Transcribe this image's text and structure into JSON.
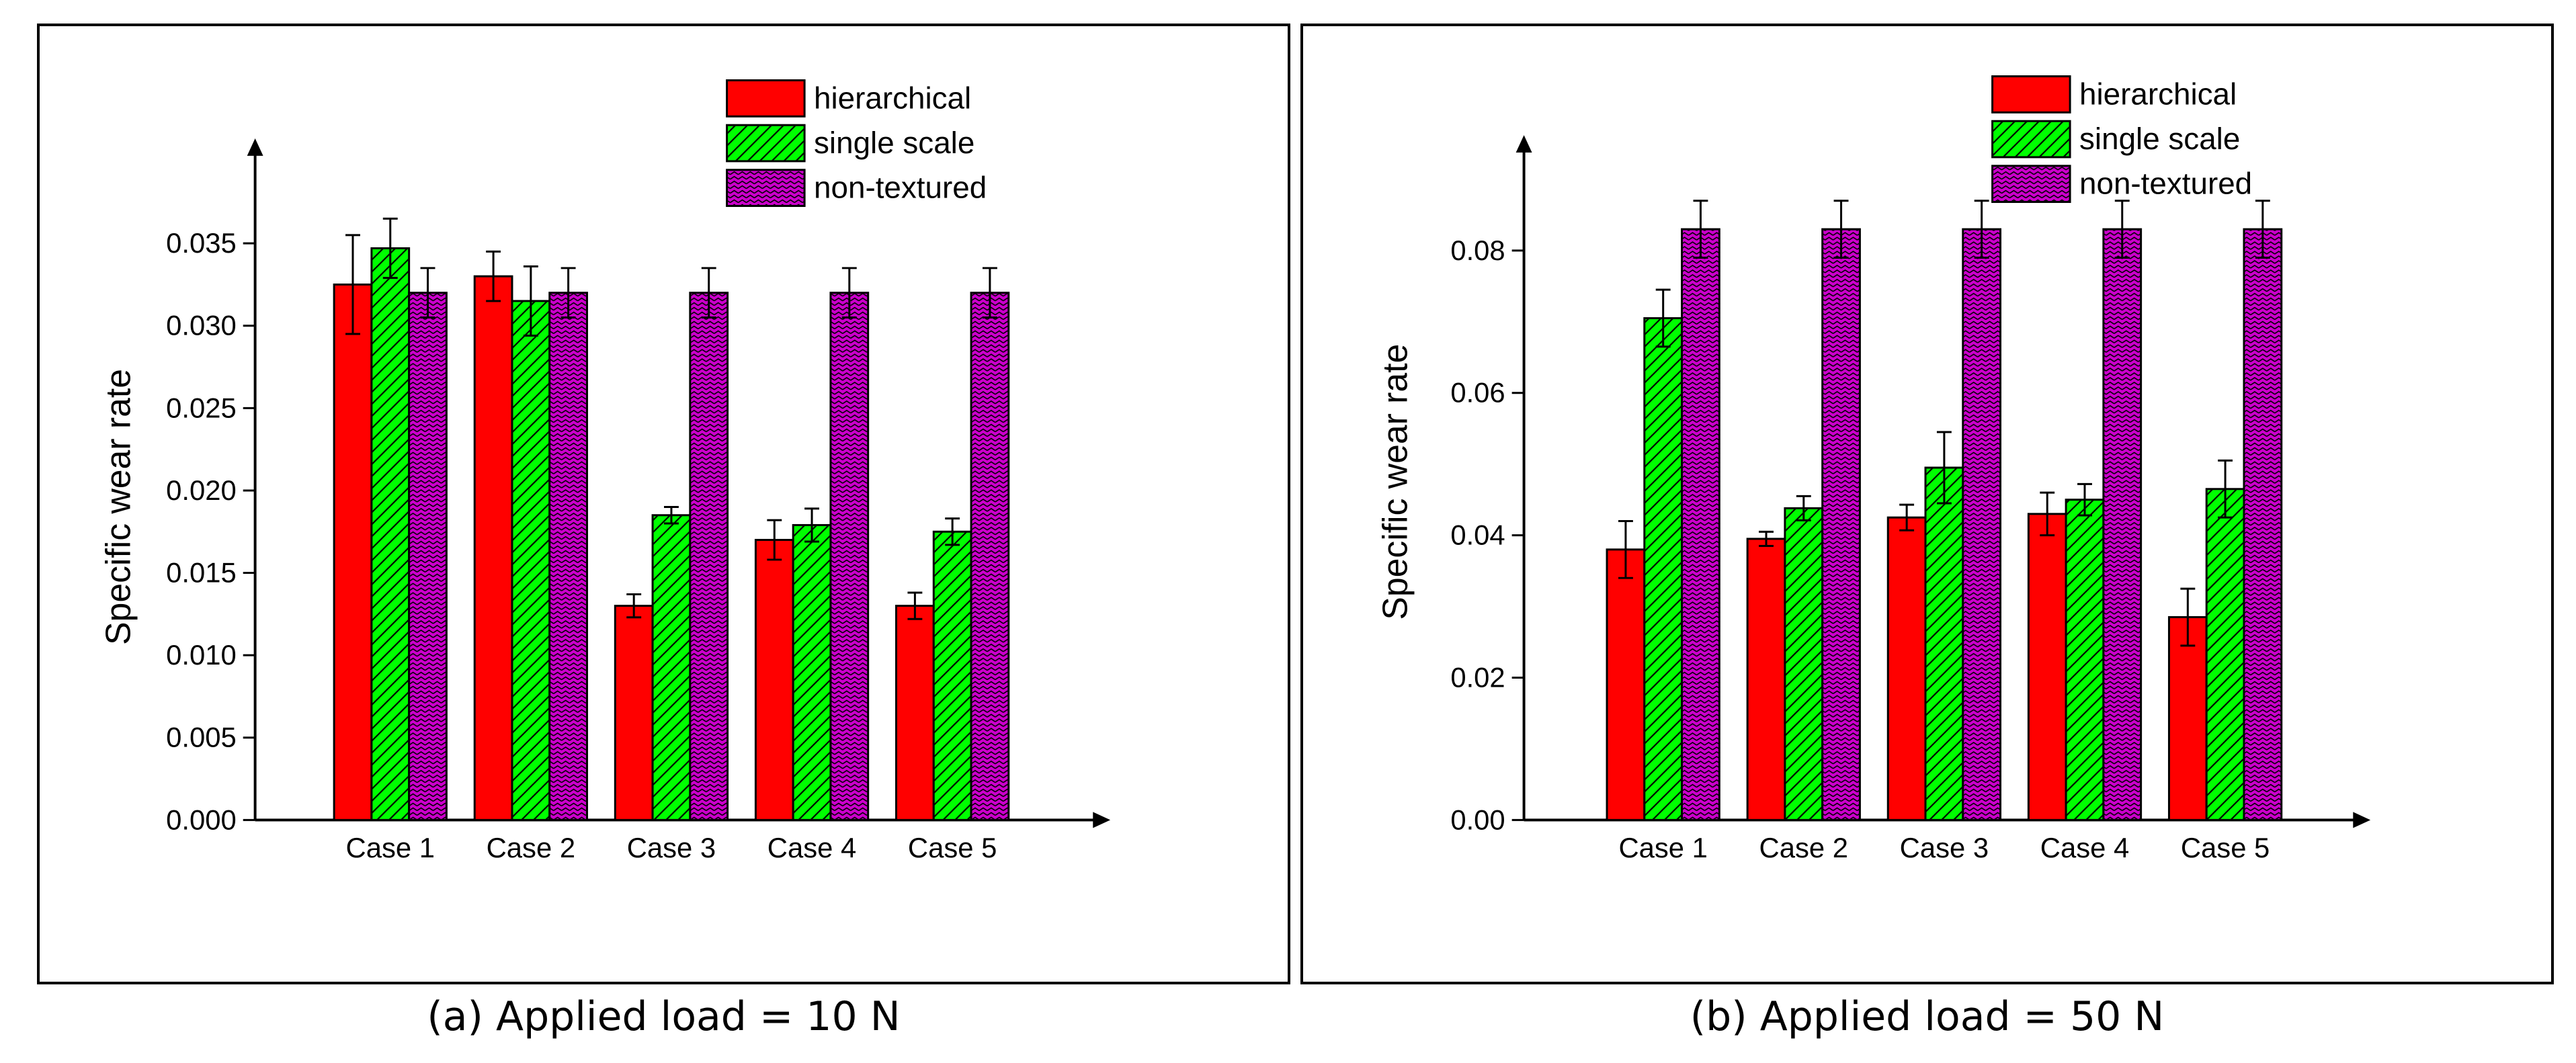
{
  "chart_data": [
    {
      "type": "bar",
      "caption": "(a) Applied load = 10 N",
      "ylabel": "Specific wear rate",
      "xlabel": "",
      "categories": [
        "Case 1",
        "Case 2",
        "Case 3",
        "Case 4",
        "Case 5"
      ],
      "ylim": [
        0,
        0.038
      ],
      "yticks": [
        0.0,
        0.005,
        0.01,
        0.015,
        0.02,
        0.025,
        0.03,
        0.035
      ],
      "ytick_labels": [
        "0.000",
        "0.005",
        "0.010",
        "0.015",
        "0.020",
        "0.025",
        "0.030",
        "0.035"
      ],
      "legend_position": "top-right",
      "series": [
        {
          "name": "hierarchical",
          "color": "#ff0000",
          "pattern": "solid",
          "values": [
            0.0325,
            0.033,
            0.013,
            0.017,
            0.013
          ],
          "errors": [
            0.003,
            0.0015,
            0.0007,
            0.0012,
            0.0008
          ]
        },
        {
          "name": "single scale",
          "color": "#00ff00",
          "pattern": "diagonal-hatch",
          "values": [
            0.0347,
            0.0315,
            0.0185,
            0.0179,
            0.0175
          ],
          "errors": [
            0.0018,
            0.0021,
            0.0005,
            0.001,
            0.0008
          ]
        },
        {
          "name": "non-textured",
          "color": "#cc00cc",
          "pattern": "zigzag",
          "values": [
            0.032,
            0.032,
            0.032,
            0.032,
            0.032
          ],
          "errors": [
            0.0015,
            0.0015,
            0.0015,
            0.0015,
            0.0015
          ]
        }
      ]
    },
    {
      "type": "bar",
      "caption": "(b) Applied load = 50 N",
      "ylabel": "Specific wear rate",
      "xlabel": "",
      "categories": [
        "Case 1",
        "Case 2",
        "Case 3",
        "Case 4",
        "Case 5"
      ],
      "ylim": [
        0,
        0.095
      ],
      "yticks": [
        0.0,
        0.02,
        0.04,
        0.06,
        0.08
      ],
      "ytick_labels": [
        "0.00",
        "0.02",
        "0.04",
        "0.06",
        "0.08"
      ],
      "legend_position": "top-right",
      "series": [
        {
          "name": "hierarchical",
          "color": "#ff0000",
          "pattern": "solid",
          "values": [
            0.038,
            0.0395,
            0.0425,
            0.043,
            0.0285
          ],
          "errors": [
            0.004,
            0.001,
            0.0018,
            0.003,
            0.004
          ]
        },
        {
          "name": "single scale",
          "color": "#00ff00",
          "pattern": "diagonal-hatch",
          "values": [
            0.0705,
            0.0438,
            0.0495,
            0.045,
            0.0465
          ],
          "errors": [
            0.004,
            0.0017,
            0.005,
            0.0022,
            0.004
          ]
        },
        {
          "name": "non-textured",
          "color": "#cc00cc",
          "pattern": "zigzag",
          "values": [
            0.083,
            0.083,
            0.083,
            0.083,
            0.083
          ],
          "errors": [
            0.004,
            0.004,
            0.004,
            0.004,
            0.004
          ]
        }
      ]
    }
  ]
}
